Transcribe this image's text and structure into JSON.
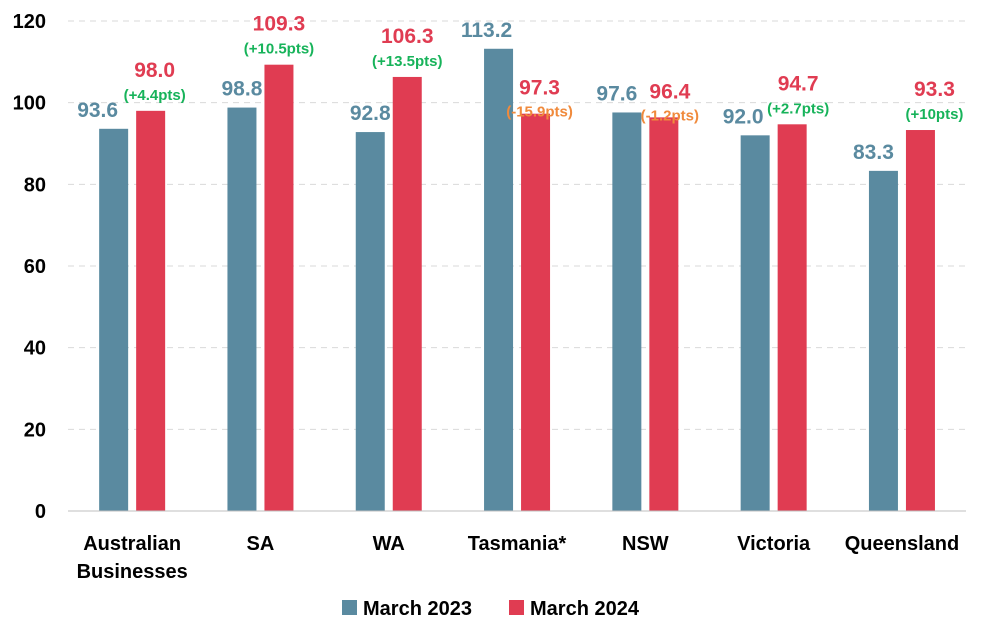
{
  "chart_data": {
    "type": "bar",
    "title": "",
    "xlabel": "",
    "ylabel": "",
    "ylim": [
      0,
      120
    ],
    "yticks": [
      0,
      20,
      40,
      60,
      80,
      100,
      120
    ],
    "grid": true,
    "legend_position": "bottom",
    "categories": [
      [
        "Australian",
        "Businesses"
      ],
      [
        "SA"
      ],
      [
        "WA"
      ],
      [
        "Tasmania*"
      ],
      [
        "NSW"
      ],
      [
        "Victoria"
      ],
      [
        "Queensland"
      ]
    ],
    "series": [
      {
        "name": "March 2023",
        "color": "#5a8aa0",
        "values": [
          93.6,
          98.8,
          92.8,
          113.2,
          97.6,
          92.0,
          83.3
        ],
        "labels": [
          "93.6",
          "98.8",
          "92.8",
          "113.2",
          "97.6",
          "92.0",
          "83.3"
        ]
      },
      {
        "name": "March 2024",
        "color": "#e03c52",
        "values": [
          98.0,
          109.3,
          106.3,
          97.3,
          96.4,
          94.7,
          93.3
        ],
        "labels": [
          "98.0",
          "109.3",
          "106.3",
          "97.3",
          "96.4",
          "94.7",
          "93.3"
        ]
      }
    ],
    "changes": [
      {
        "text": "(+4.4pts)",
        "color": "#17b35a"
      },
      {
        "text": "(+10.5pts)",
        "color": "#17b35a"
      },
      {
        "text": "(+13.5pts)",
        "color": "#17b35a"
      },
      {
        "text": "(-15.9pts)",
        "color": "#f08a3c"
      },
      {
        "text": "(-1.2pts)",
        "color": "#f08a3c"
      },
      {
        "text": "(+2.7pts)",
        "color": "#17b35a"
      },
      {
        "text": "(+10pts)",
        "color": "#17b35a"
      }
    ]
  }
}
